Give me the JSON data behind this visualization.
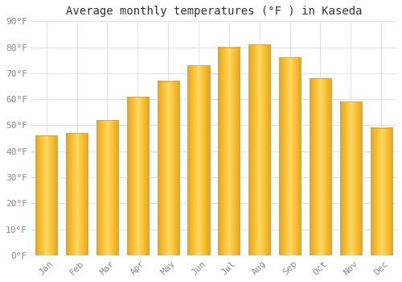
{
  "title": "Average monthly temperatures (°F ) in Kaseda",
  "months": [
    "Jan",
    "Feb",
    "Mar",
    "Apr",
    "May",
    "Jun",
    "Jul",
    "Aug",
    "Sep",
    "Oct",
    "Nov",
    "Dec"
  ],
  "values": [
    46,
    47,
    52,
    61,
    67,
    73,
    80,
    81,
    76,
    68,
    59,
    49
  ],
  "bar_color_center": "#FFD966",
  "bar_color_edge": "#F0A500",
  "bar_border_color": "#AAAAAA",
  "background_color": "#FFFFFF",
  "plot_background": "#FFFFFF",
  "ylim": [
    0,
    90
  ],
  "yticks": [
    0,
    10,
    20,
    30,
    40,
    50,
    60,
    70,
    80,
    90
  ],
  "title_fontsize": 10,
  "tick_fontsize": 8,
  "grid_color": "#E0E0E8"
}
